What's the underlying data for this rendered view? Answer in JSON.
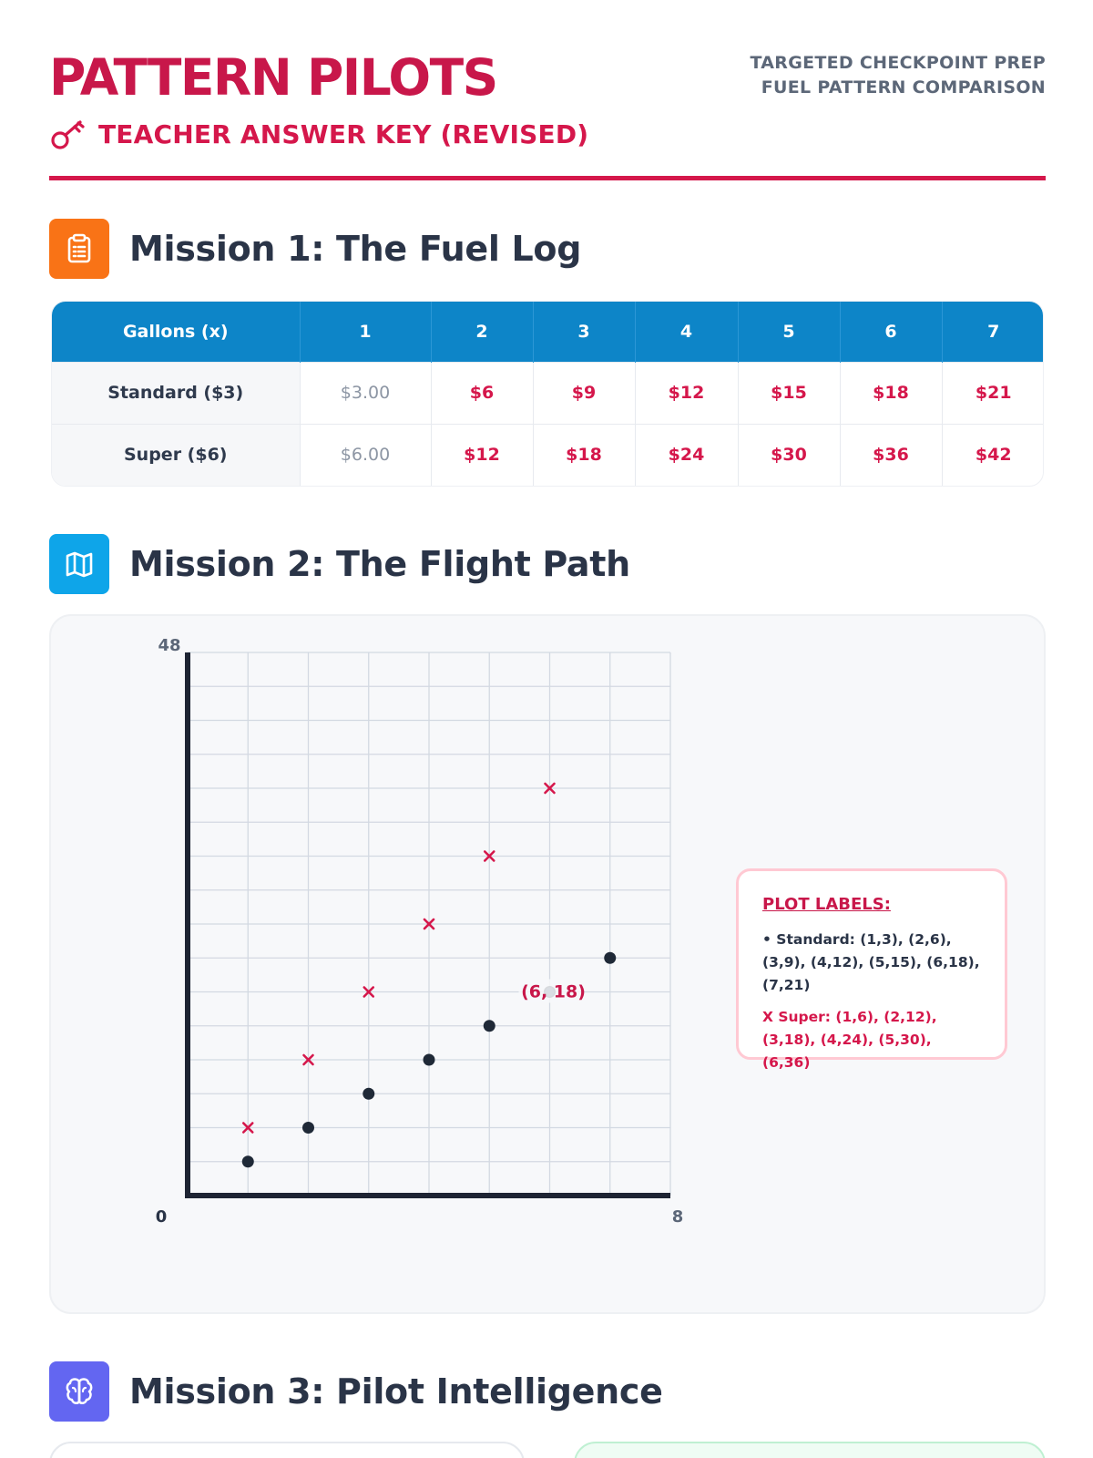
{
  "header": {
    "brand": "PATTERN PILOTS",
    "subtitle": "TEACHER ANSWER KEY (REVISED)",
    "prep_line1": "TARGETED CHECKPOINT PREP",
    "prep_line2": "FUEL PATTERN COMPARISON"
  },
  "mission1": {
    "title": "Mission 1: The Fuel Log",
    "icon": "clipboard-icon",
    "accent": "#f97316",
    "table": {
      "headers": [
        "Gallons (x)",
        "1",
        "2",
        "3",
        "4",
        "5",
        "6",
        "7"
      ],
      "rows": [
        {
          "label": "Standard ($3)",
          "cells": [
            "$3.00",
            "$6",
            "$9",
            "$12",
            "$15",
            "$18",
            "$21"
          ]
        },
        {
          "label": "Super ($6)",
          "cells": [
            "$6.00",
            "$12",
            "$18",
            "$24",
            "$30",
            "$36",
            "$42"
          ]
        }
      ]
    }
  },
  "mission2": {
    "title": "Mission 2: The Flight Path",
    "icon": "map-icon",
    "accent": "#0ea5e9",
    "chart_data": {
      "type": "scatter",
      "xlim": [
        0,
        8
      ],
      "ylim": [
        0,
        48
      ],
      "x_tick_labels": [
        "0",
        "8"
      ],
      "y_tick_labels": [
        "48"
      ],
      "grid": true,
      "series": [
        {
          "name": "Standard",
          "marker": "dot",
          "color": "#1f2937",
          "points": [
            [
              1,
              3
            ],
            [
              2,
              6
            ],
            [
              3,
              9
            ],
            [
              4,
              12
            ],
            [
              5,
              15
            ],
            [
              6,
              18
            ],
            [
              7,
              21
            ]
          ]
        },
        {
          "name": "Super",
          "marker": "x",
          "color": "#d5174b",
          "points": [
            [
              1,
              6
            ],
            [
              2,
              12
            ],
            [
              3,
              18
            ],
            [
              4,
              24
            ],
            [
              5,
              30
            ],
            [
              6,
              36
            ]
          ]
        }
      ],
      "annotation": {
        "text": "(6, 18)",
        "at": [
          6,
          18
        ]
      }
    },
    "plot_labels": {
      "title": "PLOT LABELS:",
      "standard": "• Standard: (1,3), (2,6), (3,9), (4,12), (5,15), (6,18), (7,21)",
      "super": "X Super: (1,6), (2,12), (3,18), (4,24), (5,30), (6,36)"
    }
  },
  "mission3": {
    "title": "Mission 3: Pilot Intelligence",
    "icon": "brain-icon",
    "accent": "#6366f1"
  },
  "colors": {
    "brand": "#c8174a",
    "accent_red": "#d5174b",
    "table_header": "#0d85c8"
  }
}
